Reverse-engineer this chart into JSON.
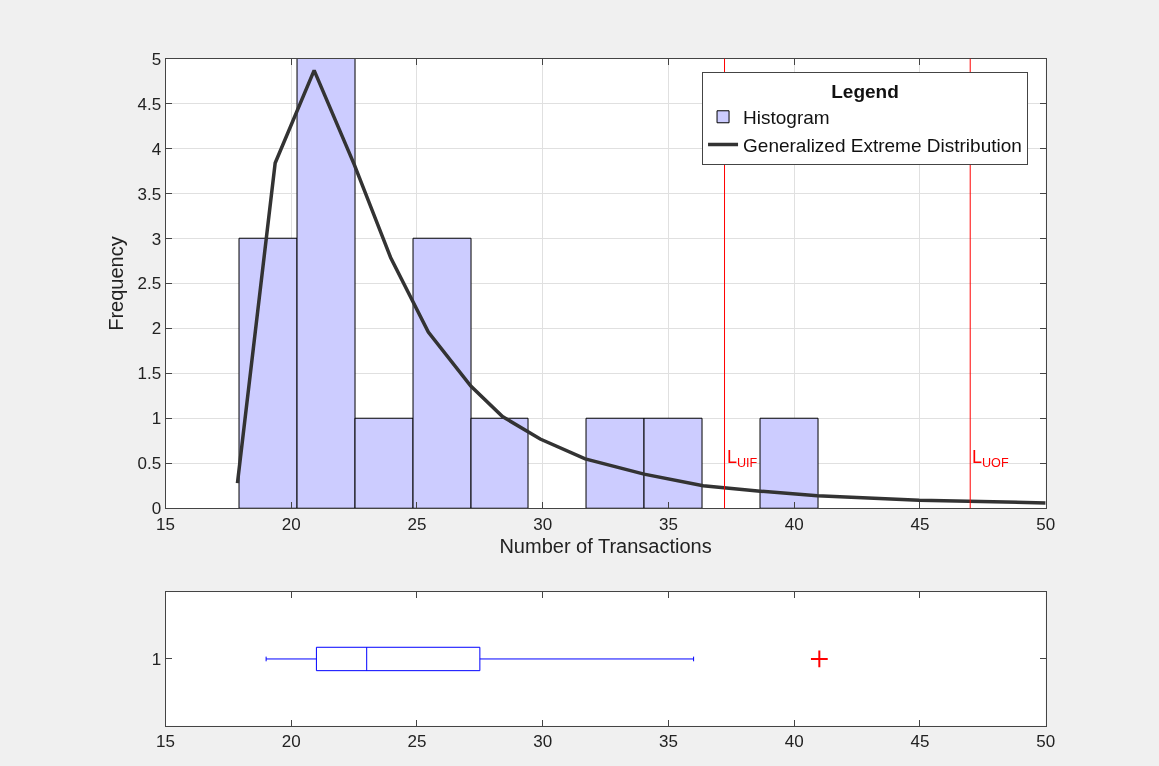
{
  "chart_data": [
    {
      "type": "histogram",
      "xlabel": "Number of Transactions",
      "ylabel": "Frequency",
      "legend_title": "Legend",
      "legend": "top right",
      "grid": true,
      "xlim": [
        15,
        50
      ],
      "xticks": [
        15,
        20,
        25,
        30,
        35,
        40,
        45,
        50
      ],
      "ylim": [
        0,
        5
      ],
      "yticks": [
        0,
        0.5,
        1,
        1.5,
        2,
        2.5,
        3,
        3.5,
        4,
        4.5,
        5
      ],
      "bins": [
        17.95,
        20.25,
        22.55,
        24.85,
        27.15,
        29.45,
        31.75,
        34.05,
        36.35,
        38.65,
        40.95
      ],
      "series": [
        {
          "name": "Histogram",
          "type": "histogram",
          "color": "#ccccff",
          "values": [
            3,
            5,
            1,
            3,
            1,
            0,
            1,
            1,
            0,
            1
          ]
        },
        {
          "name": "Generalized Extreme Distribution",
          "type": "line",
          "color": "#333333",
          "marker": "none",
          "line_style": "solid",
          "x": [
            17.86,
            19.36,
            20.91,
            22.51,
            23.95,
            25.45,
            27.14,
            28.4,
            29.9,
            31.69,
            34.03,
            36.38,
            38.65,
            40.92,
            44.97,
            50
          ],
          "values": [
            0.28,
            3.84,
            4.87,
            3.82,
            2.79,
            1.96,
            1.36,
            1.02,
            0.77,
            0.55,
            0.38,
            0.25,
            0.19,
            0.14,
            0.09,
            0.06
          ]
        }
      ],
      "ref_lines": [
        {
          "axis": "x",
          "value": 37.23,
          "label": "L$_{UIF}$",
          "color": "#ff0000"
        },
        {
          "axis": "x",
          "value": 47.0,
          "label": "L$_{UOF}$",
          "color": "#ff0000"
        }
      ]
    },
    {
      "type": "box",
      "orientation": "horizontal",
      "categories": [
        "1"
      ],
      "xlim": [
        15,
        50
      ],
      "xticks": [
        15,
        20,
        25,
        30,
        35,
        40,
        45,
        50
      ],
      "grid": false,
      "series": [
        {
          "color": "#0000ff",
          "boxes": [
            {
              "low": 19,
              "q1": 21,
              "median": 23,
              "q3": 27.5,
              "high": 36
            }
          ]
        },
        {
          "type": "scatter",
          "color": "#ff0000",
          "marker": "cross",
          "x": [
            "1"
          ],
          "values": [
            41
          ]
        }
      ]
    }
  ]
}
